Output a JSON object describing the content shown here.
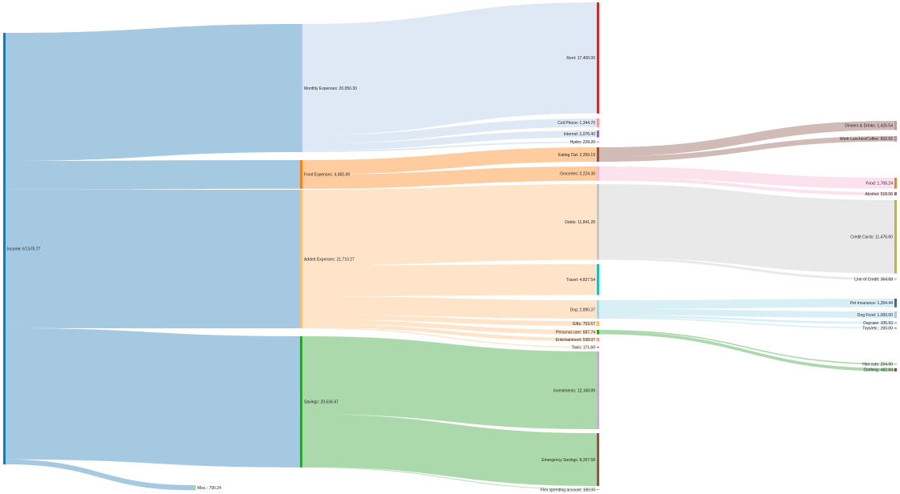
{
  "chart_data": {
    "type": "sankey",
    "nodes": [
      {
        "id": "income",
        "name": "Income",
        "value": 67570.77,
        "color": "#1f77b4"
      },
      {
        "id": "monthly",
        "name": "Monthly Expenses",
        "value": 20050.3,
        "color": "#aec7e8"
      },
      {
        "id": "food_exp",
        "name": "Food Expenses",
        "value": 4483.49,
        "color": "#ff7f0e"
      },
      {
        "id": "added",
        "name": "Added Expenses",
        "value": 21710.27,
        "color": "#ffbb78"
      },
      {
        "id": "savings",
        "name": "Savings",
        "value": 20536.47,
        "color": "#2ca02c"
      },
      {
        "id": "misc",
        "name": "Misc.",
        "value": 790.24,
        "color": "#98df8a"
      },
      {
        "id": "rent",
        "name": "Rent",
        "value": 17400.0,
        "color": "#d62728"
      },
      {
        "id": "cell",
        "name": "Cell Phone",
        "value": 1344.7,
        "color": "#ff9896"
      },
      {
        "id": "internet",
        "name": "Internet",
        "value": 1076.4,
        "color": "#9467bd"
      },
      {
        "id": "hydro",
        "name": "Hydro",
        "value": 229.2,
        "color": "#c5b0d5"
      },
      {
        "id": "eating",
        "name": "Eating Out",
        "value": 2259.19,
        "color": "#8c564b"
      },
      {
        "id": "groceries",
        "name": "Groceries",
        "value": 2224.3,
        "color": "#f7b6d2"
      },
      {
        "id": "debts",
        "name": "Debts",
        "value": 11841.28,
        "color": "#c7c7c7"
      },
      {
        "id": "travel",
        "name": "Travel",
        "value": 4827.54,
        "color": "#17becf"
      },
      {
        "id": "dog",
        "name": "Dog",
        "value": 2890.37,
        "color": "#9edae5"
      },
      {
        "id": "gifts",
        "name": "Gifts",
        "value": 753.67,
        "color": "#ffbb78"
      },
      {
        "id": "pcare",
        "name": "Personal care",
        "value": 687.74,
        "color": "#2ca02c"
      },
      {
        "id": "entertain",
        "name": "Entertainment",
        "value": 538.07,
        "color": "#ff9896"
      },
      {
        "id": "taxis",
        "name": "Taxis",
        "value": 171.6,
        "color": "#9467bd"
      },
      {
        "id": "invest",
        "name": "Investments",
        "value": 12168.89,
        "color": "#c5b0d5"
      },
      {
        "id": "emergency",
        "name": "Emergency Savings",
        "value": 8267.58,
        "color": "#8c564b"
      },
      {
        "id": "flex",
        "name": "Flex spending account",
        "value": 100.0,
        "color": "#c49c94"
      },
      {
        "id": "dinners",
        "name": "Dinners & Drinks",
        "value": 1425.54,
        "color": "#c49c94"
      },
      {
        "id": "lunches",
        "name": "Work Lunches/Coffee",
        "value": 833.65,
        "color": "#e377c2"
      },
      {
        "id": "food",
        "name": "Food",
        "value": 1706.24,
        "color": "#ff7f0e"
      },
      {
        "id": "alcohol",
        "name": "Alcohol",
        "value": 518.06,
        "color": "#7f7f7f"
      },
      {
        "id": "cc",
        "name": "Credit Cards",
        "value": 11476.6,
        "color": "#bcbd22"
      },
      {
        "id": "loc",
        "name": "Line of Credit",
        "value": 364.68,
        "color": "#dbdb8d"
      },
      {
        "id": "petins",
        "name": "Pet Insurance",
        "value": 1354.44,
        "color": "#1f77b4"
      },
      {
        "id": "dogfood",
        "name": "Dog Food",
        "value": 1000.0,
        "color": "#aec7e8"
      },
      {
        "id": "daycare",
        "name": "Daycare",
        "value": 335.93,
        "color": "#aec7e8"
      },
      {
        "id": "toys",
        "name": "Toys/etc.",
        "value": 200.0,
        "color": "#ff7f0e"
      },
      {
        "id": "haircuts",
        "name": "Hair cuts",
        "value": 204.9,
        "color": "#98df8a"
      },
      {
        "id": "clothing",
        "name": "Clothing",
        "value": 482.84,
        "color": "#d62728"
      }
    ],
    "links": [
      {
        "source": "income",
        "target": "monthly",
        "value": 20050.3
      },
      {
        "source": "income",
        "target": "food_exp",
        "value": 4483.49
      },
      {
        "source": "income",
        "target": "added",
        "value": 21710.27
      },
      {
        "source": "income",
        "target": "savings",
        "value": 20536.47
      },
      {
        "source": "income",
        "target": "misc",
        "value": 790.24
      },
      {
        "source": "monthly",
        "target": "rent",
        "value": 17400.0
      },
      {
        "source": "monthly",
        "target": "cell",
        "value": 1344.7
      },
      {
        "source": "monthly",
        "target": "internet",
        "value": 1076.4
      },
      {
        "source": "monthly",
        "target": "hydro",
        "value": 229.2
      },
      {
        "source": "food_exp",
        "target": "eating",
        "value": 2259.19
      },
      {
        "source": "food_exp",
        "target": "groceries",
        "value": 2224.3
      },
      {
        "source": "added",
        "target": "debts",
        "value": 11841.28
      },
      {
        "source": "added",
        "target": "travel",
        "value": 4827.54
      },
      {
        "source": "added",
        "target": "dog",
        "value": 2890.37
      },
      {
        "source": "added",
        "target": "gifts",
        "value": 753.67
      },
      {
        "source": "added",
        "target": "pcare",
        "value": 687.74
      },
      {
        "source": "added",
        "target": "entertain",
        "value": 538.07
      },
      {
        "source": "added",
        "target": "taxis",
        "value": 171.6
      },
      {
        "source": "savings",
        "target": "invest",
        "value": 12168.89
      },
      {
        "source": "savings",
        "target": "emergency",
        "value": 8267.58
      },
      {
        "source": "savings",
        "target": "flex",
        "value": 100.0
      },
      {
        "source": "eating",
        "target": "dinners",
        "value": 1425.54
      },
      {
        "source": "eating",
        "target": "lunches",
        "value": 833.65
      },
      {
        "source": "groceries",
        "target": "food",
        "value": 1706.24
      },
      {
        "source": "groceries",
        "target": "alcohol",
        "value": 518.06
      },
      {
        "source": "debts",
        "target": "cc",
        "value": 11476.6
      },
      {
        "source": "debts",
        "target": "loc",
        "value": 364.68
      },
      {
        "source": "dog",
        "target": "petins",
        "value": 1354.44
      },
      {
        "source": "dog",
        "target": "dogfood",
        "value": 1000.0
      },
      {
        "source": "dog",
        "target": "daycare",
        "value": 335.93
      },
      {
        "source": "dog",
        "target": "toys",
        "value": 200.0
      },
      {
        "source": "pcare",
        "target": "haircuts",
        "value": 204.9
      },
      {
        "source": "pcare",
        "target": "clothing",
        "value": 482.84
      }
    ],
    "link_opacity": 0.4
  }
}
